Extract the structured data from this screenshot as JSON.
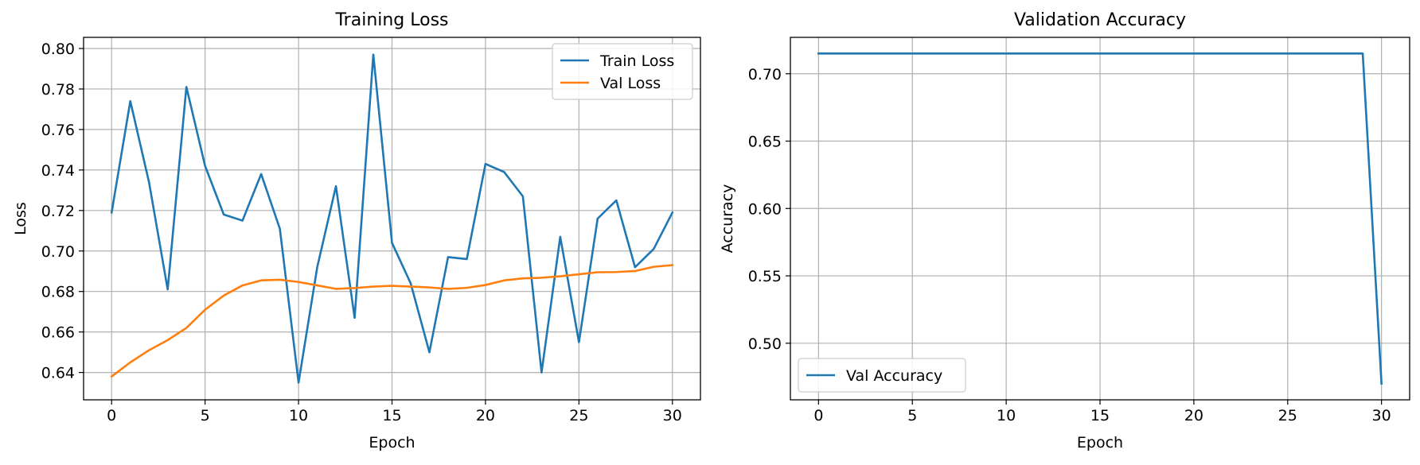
{
  "colors": {
    "series1": "#1f77b4",
    "series2": "#ff7f0e",
    "grid": "#b0b0b0",
    "axes": "#000000"
  },
  "chart_data": [
    {
      "type": "line",
      "title": "Training Loss",
      "xlabel": "Epoch",
      "ylabel": "Loss",
      "xlim": [
        -1.5,
        31.5
      ],
      "ylim": [
        0.6265,
        0.8055
      ],
      "xticks": [
        0,
        5,
        10,
        15,
        20,
        25,
        30
      ],
      "yticks": [
        0.64,
        0.66,
        0.68,
        0.7,
        0.72,
        0.74,
        0.76,
        0.78,
        0.8
      ],
      "xtick_labels": [
        "0",
        "5",
        "10",
        "15",
        "20",
        "25",
        "30"
      ],
      "ytick_labels": [
        "0.64",
        "0.66",
        "0.68",
        "0.70",
        "0.72",
        "0.74",
        "0.76",
        "0.78",
        "0.80"
      ],
      "grid": true,
      "legend_position": "top-right",
      "x": [
        0,
        1,
        2,
        3,
        4,
        5,
        6,
        7,
        8,
        9,
        10,
        11,
        12,
        13,
        14,
        15,
        16,
        17,
        18,
        19,
        20,
        21,
        22,
        23,
        24,
        25,
        26,
        27,
        28,
        29,
        30
      ],
      "series": [
        {
          "name": "Train Loss",
          "color": "#1f77b4",
          "values": [
            0.719,
            0.774,
            0.734,
            0.681,
            0.781,
            0.742,
            0.718,
            0.715,
            0.738,
            0.711,
            0.635,
            0.692,
            0.732,
            0.667,
            0.797,
            0.704,
            0.684,
            0.65,
            0.697,
            0.696,
            0.743,
            0.739,
            0.727,
            0.64,
            0.707,
            0.655,
            0.716,
            0.725,
            0.692,
            0.701,
            0.719
          ]
        },
        {
          "name": "Val Loss",
          "color": "#ff7f0e",
          "values": [
            0.638,
            0.645,
            0.651,
            0.656,
            0.662,
            0.671,
            0.678,
            0.683,
            0.6855,
            0.6858,
            0.6847,
            0.683,
            0.6813,
            0.6817,
            0.6824,
            0.6828,
            0.6824,
            0.682,
            0.6813,
            0.6818,
            0.6832,
            0.6855,
            0.6865,
            0.6868,
            0.6875,
            0.6885,
            0.6895,
            0.6896,
            0.6901,
            0.6922,
            0.693
          ]
        }
      ]
    },
    {
      "type": "line",
      "title": "Validation Accuracy",
      "xlabel": "Epoch",
      "ylabel": "Accuracy",
      "xlim": [
        -1.5,
        31.5
      ],
      "ylim": [
        0.458,
        0.727
      ],
      "xticks": [
        0,
        5,
        10,
        15,
        20,
        25,
        30
      ],
      "yticks": [
        0.5,
        0.55,
        0.6,
        0.65,
        0.7
      ],
      "xtick_labels": [
        "0",
        "5",
        "10",
        "15",
        "20",
        "25",
        "30"
      ],
      "ytick_labels": [
        "0.50",
        "0.55",
        "0.60",
        "0.65",
        "0.70"
      ],
      "grid": true,
      "legend_position": "bottom-left",
      "x": [
        0,
        1,
        2,
        3,
        4,
        5,
        6,
        7,
        8,
        9,
        10,
        11,
        12,
        13,
        14,
        15,
        16,
        17,
        18,
        19,
        20,
        21,
        22,
        23,
        24,
        25,
        26,
        27,
        28,
        29,
        30
      ],
      "series": [
        {
          "name": "Val Accuracy",
          "color": "#1f77b4",
          "values": [
            0.715,
            0.715,
            0.715,
            0.715,
            0.715,
            0.715,
            0.715,
            0.715,
            0.715,
            0.715,
            0.715,
            0.715,
            0.715,
            0.715,
            0.715,
            0.715,
            0.715,
            0.715,
            0.715,
            0.715,
            0.715,
            0.715,
            0.715,
            0.715,
            0.715,
            0.715,
            0.715,
            0.715,
            0.715,
            0.715,
            0.47
          ]
        }
      ]
    }
  ]
}
